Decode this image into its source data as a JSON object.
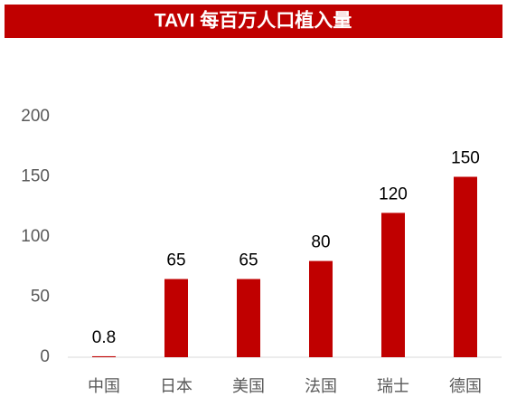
{
  "chart_data": {
    "type": "bar",
    "title": "TAVI 每百万人口植入量",
    "categories": [
      "中国",
      "日本",
      "美国",
      "法国",
      "瑞士",
      "德国"
    ],
    "values": [
      0.8,
      65,
      65,
      80,
      120,
      150
    ],
    "color": "#c00000",
    "ylim": [
      0,
      200
    ],
    "yticks": [
      0,
      50,
      100,
      150,
      200
    ],
    "grid": false
  }
}
